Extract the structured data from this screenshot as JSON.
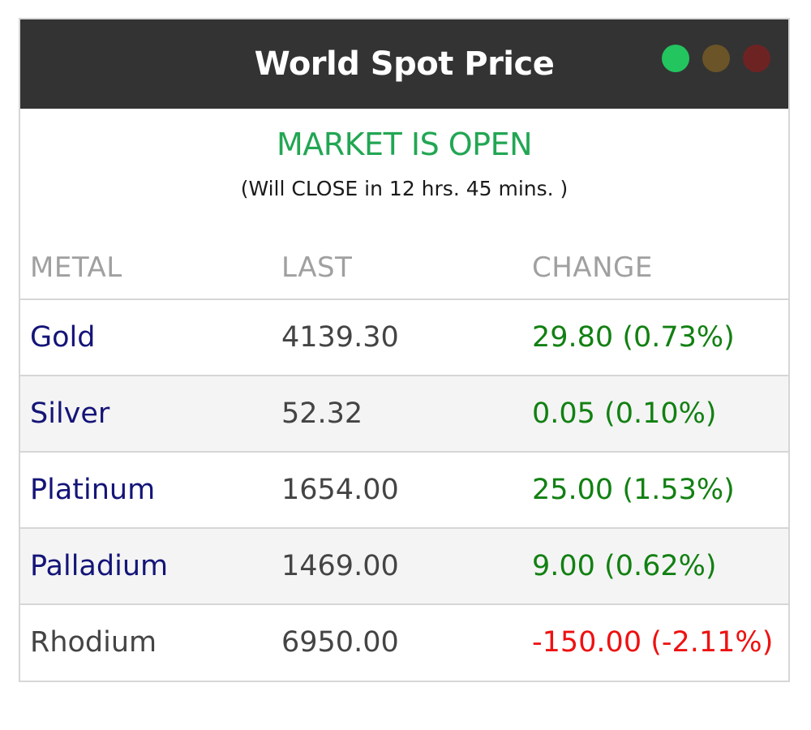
{
  "header": {
    "title": "World Spot Price",
    "lights": [
      {
        "name": "green-light",
        "color": "#22c55e"
      },
      {
        "name": "amber-light",
        "color": "#6b5427"
      },
      {
        "name": "red-light",
        "color": "#6e2323"
      }
    ]
  },
  "market": {
    "status": "MARKET IS OPEN",
    "status_color": "#22a653",
    "countdown": "(Will CLOSE in 12 hrs. 45 mins. )"
  },
  "table": {
    "columns": [
      "METAL",
      "LAST",
      "CHANGE"
    ],
    "rows": [
      {
        "metal": "Gold",
        "last": "4139.30",
        "change": "29.80 (0.73%)",
        "direction": "up",
        "linked": true
      },
      {
        "metal": "Silver",
        "last": "52.32",
        "change": "0.05 (0.10%)",
        "direction": "up",
        "linked": true
      },
      {
        "metal": "Platinum",
        "last": "1654.00",
        "change": "25.00 (1.53%)",
        "direction": "up",
        "linked": true
      },
      {
        "metal": "Palladium",
        "last": "1469.00",
        "change": "9.00 (0.62%)",
        "direction": "up",
        "linked": true
      },
      {
        "metal": "Rhodium",
        "last": "6950.00",
        "change": "-150.00 (-2.11%)",
        "direction": "down",
        "linked": false
      }
    ],
    "colors": {
      "up": "#128012",
      "down": "#ee1111"
    }
  }
}
